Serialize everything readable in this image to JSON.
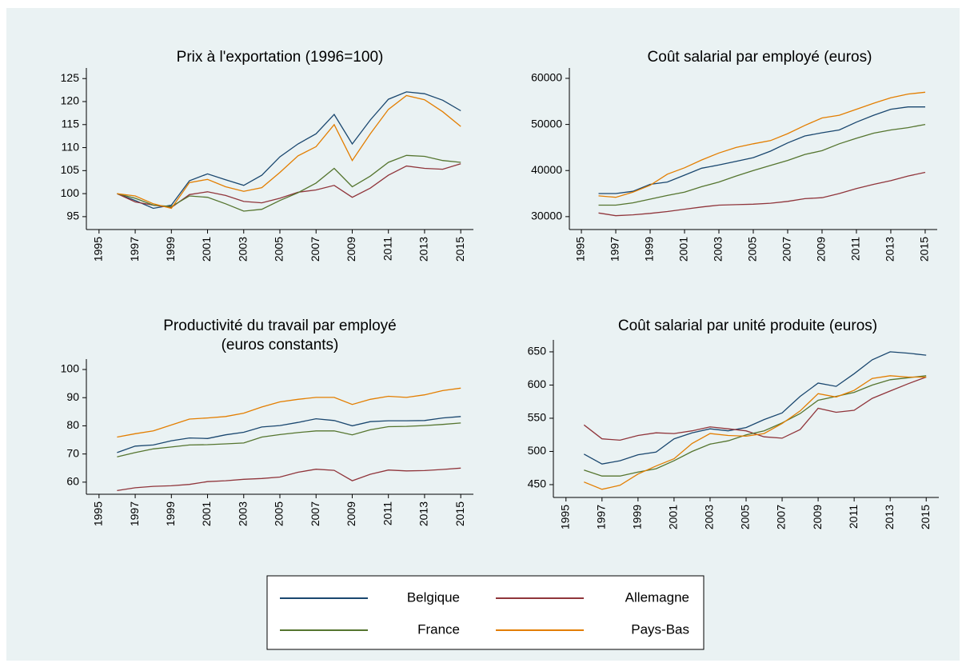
{
  "legend": [
    {
      "name": "Belgique",
      "color": "#1a476f"
    },
    {
      "name": "Allemagne",
      "color": "#90353b"
    },
    {
      "name": "France",
      "color": "#55752f"
    },
    {
      "name": "Pays-Bas",
      "color": "#e37e00"
    }
  ],
  "chart_data": [
    {
      "type": "line",
      "title": [
        "Prix à l'exportation (1996=100)"
      ],
      "x": [
        1996,
        1997,
        1998,
        1999,
        2000,
        2001,
        2002,
        2003,
        2004,
        2005,
        2006,
        2007,
        2008,
        2009,
        2010,
        2011,
        2012,
        2013,
        2014,
        2015
      ],
      "xlim": [
        1994.3,
        2015.7
      ],
      "xticks": [
        1995,
        1997,
        1999,
        2001,
        2003,
        2005,
        2007,
        2009,
        2011,
        2013,
        2015
      ],
      "ylim": [
        92.2,
        127.3
      ],
      "yticks": [
        95,
        100,
        105,
        110,
        115,
        120,
        125
      ],
      "series": [
        {
          "values": [
            100,
            98.5,
            96.8,
            97.5,
            102.8,
            104.3,
            103,
            101.8,
            104,
            108,
            110.8,
            113,
            117.2,
            110.8,
            116,
            120.5,
            122.1,
            121.7,
            120.3,
            118
          ]
        },
        {
          "values": [
            100,
            98.2,
            97.5,
            97,
            99.8,
            100.4,
            99.6,
            98.3,
            98,
            99,
            100.3,
            100.8,
            101.8,
            99.2,
            101.2,
            104,
            106,
            105.5,
            105.3,
            106.5
          ]
        },
        {
          "values": [
            100,
            99,
            97.5,
            97.2,
            99.5,
            99.2,
            97.8,
            96.2,
            96.6,
            98.5,
            100.2,
            102.3,
            105.5,
            101.5,
            103.8,
            106.8,
            108.3,
            108.1,
            107.2,
            106.8
          ]
        },
        {
          "values": [
            100,
            99.5,
            97.8,
            96.8,
            102.4,
            103.1,
            101.5,
            100.5,
            101.3,
            104.6,
            108.2,
            110.2,
            115,
            107.2,
            113,
            118.3,
            121.3,
            120.4,
            117.8,
            114.6
          ]
        }
      ]
    },
    {
      "type": "line",
      "title": [
        "Coût salarial par employé (euros)"
      ],
      "x": [
        1996,
        1997,
        1998,
        1999,
        2000,
        2001,
        2002,
        2003,
        2004,
        2005,
        2006,
        2007,
        2008,
        2009,
        2010,
        2011,
        2012,
        2013,
        2014,
        2015
      ],
      "xlim": [
        1994.3,
        2015.7
      ],
      "xticks": [
        1995,
        1997,
        1999,
        2001,
        2003,
        2005,
        2007,
        2009,
        2011,
        2013,
        2015
      ],
      "ylim": [
        27200,
        62250
      ],
      "yticks": [
        30000,
        40000,
        50000,
        60000
      ],
      "series": [
        {
          "values": [
            35000,
            35000,
            35500,
            37000,
            37500,
            39000,
            40500,
            41200,
            42000,
            42800,
            44200,
            46000,
            47500,
            48200,
            48800,
            50500,
            52000,
            53300,
            53800,
            53800
          ]
        },
        {
          "values": [
            30800,
            30200,
            30400,
            30700,
            31100,
            31600,
            32100,
            32500,
            32600,
            32700,
            32900,
            33300,
            33900,
            34100,
            35000,
            36100,
            37000,
            37800,
            38800,
            39600
          ]
        },
        {
          "values": [
            32500,
            32500,
            33000,
            33800,
            34600,
            35300,
            36500,
            37500,
            38800,
            40000,
            41100,
            42200,
            43500,
            44300,
            45800,
            47000,
            48100,
            48800,
            49300,
            50000
          ]
        },
        {
          "values": [
            34500,
            34200,
            35300,
            36800,
            39200,
            40600,
            42300,
            43800,
            45000,
            45800,
            46500,
            48000,
            49800,
            51400,
            52000,
            53300,
            54600,
            55800,
            56600,
            57000
          ]
        }
      ]
    },
    {
      "type": "line",
      "title": [
        "Productivité du travail par employé",
        "(euros constants)"
      ],
      "x": [
        1996,
        1997,
        1998,
        1999,
        2000,
        2001,
        2002,
        2003,
        2004,
        2005,
        2006,
        2007,
        2008,
        2009,
        2010,
        2011,
        2012,
        2013,
        2014,
        2015
      ],
      "xlim": [
        1994.3,
        2015.7
      ],
      "xticks": [
        1995,
        1997,
        1999,
        2001,
        2003,
        2005,
        2007,
        2009,
        2011,
        2013,
        2015
      ],
      "ylim": [
        55.7,
        103.7
      ],
      "yticks": [
        60,
        70,
        80,
        90,
        100
      ],
      "series": [
        {
          "values": [
            70.5,
            72.8,
            73.2,
            74.7,
            75.7,
            75.5,
            76.8,
            77.7,
            79.6,
            80.1,
            81.2,
            82.5,
            81.9,
            80,
            81.5,
            81.8,
            81.8,
            81.9,
            82.8,
            83.3
          ]
        },
        {
          "values": [
            57,
            58,
            58.5,
            58.7,
            59.2,
            60.2,
            60.5,
            61,
            61.3,
            61.8,
            63.5,
            64.6,
            64.2,
            60.5,
            62.8,
            64.3,
            64,
            64.1,
            64.5,
            65
          ]
        },
        {
          "values": [
            69,
            70.5,
            71.8,
            72.5,
            73.2,
            73.3,
            73.6,
            73.9,
            76,
            76.9,
            77.6,
            78.2,
            78.2,
            76.8,
            78.6,
            79.7,
            79.8,
            80.1,
            80.5,
            81
          ]
        },
        {
          "values": [
            76,
            77.2,
            78.2,
            80.3,
            82.4,
            82.8,
            83.3,
            84.5,
            86.7,
            88.5,
            89.4,
            90.1,
            90.1,
            87.6,
            89.4,
            90.5,
            90.1,
            91,
            92.5,
            93.4
          ]
        }
      ]
    },
    {
      "type": "line",
      "title": [
        "Coût salarial par unité produite (euros)"
      ],
      "x": [
        1996,
        1997,
        1998,
        1999,
        2000,
        2001,
        2002,
        2003,
        2004,
        2005,
        2006,
        2007,
        2008,
        2009,
        2010,
        2011,
        2012,
        2013,
        2014,
        2015
      ],
      "xlim": [
        1994.3,
        2015.7
      ],
      "xticks": [
        1995,
        1997,
        1999,
        2001,
        2003,
        2005,
        2007,
        2009,
        2011,
        2013,
        2015
      ],
      "ylim": [
        430.7,
        668
      ],
      "yticks": [
        450,
        500,
        550,
        600,
        650
      ],
      "series": [
        {
          "values": [
            496,
            481,
            486,
            495,
            499,
            519,
            528,
            534,
            531,
            536,
            548,
            558,
            583,
            603,
            598,
            617,
            638,
            650,
            648,
            645
          ]
        },
        {
          "values": [
            540,
            519,
            517,
            524,
            528,
            527,
            531,
            537,
            534,
            531,
            522,
            520,
            533,
            565,
            559,
            562,
            580,
            591,
            602,
            612
          ]
        },
        {
          "values": [
            472,
            463,
            463,
            469,
            474,
            486,
            500,
            511,
            516,
            525,
            531,
            543,
            557,
            577,
            583,
            589,
            600,
            608,
            611,
            614
          ]
        },
        {
          "values": [
            454,
            443,
            449,
            466,
            478,
            489,
            512,
            527,
            524,
            523,
            527,
            542,
            561,
            587,
            582,
            592,
            610,
            614,
            612,
            612
          ]
        }
      ]
    }
  ]
}
